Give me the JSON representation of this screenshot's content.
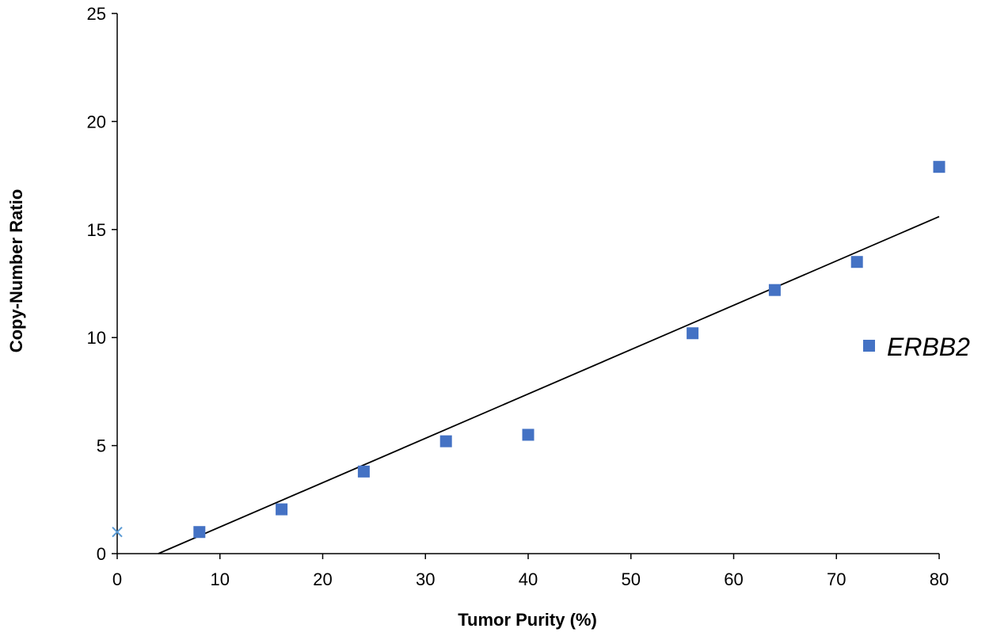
{
  "chart_data": {
    "type": "scatter",
    "title": "",
    "xlabel": "Tumor Purity (%)",
    "ylabel": "Copy-Number Ratio",
    "xlim": [
      0,
      80
    ],
    "ylim": [
      0,
      25
    ],
    "x_ticks": [
      "0",
      "10",
      "20",
      "30",
      "40",
      "50",
      "60",
      "70",
      "80"
    ],
    "y_ticks": [
      "0",
      "5",
      "10",
      "15",
      "20",
      "25"
    ],
    "grid": false,
    "legend_position": "right",
    "series": [
      {
        "name": "ERBB2",
        "marker": "square",
        "color": "#4472C4",
        "x": [
          8,
          16,
          24,
          32,
          40,
          56,
          64,
          72,
          80
        ],
        "y": [
          1.0,
          2.05,
          3.8,
          5.2,
          5.5,
          10.2,
          12.2,
          13.5,
          17.9
        ]
      }
    ],
    "reference_point": {
      "marker": "x",
      "color": "#5B9BD5",
      "x": 0,
      "y": 1.0
    },
    "trendline": {
      "type": "linear",
      "color": "#000000",
      "x": [
        4,
        80
      ],
      "y": [
        0,
        15.6
      ]
    }
  }
}
